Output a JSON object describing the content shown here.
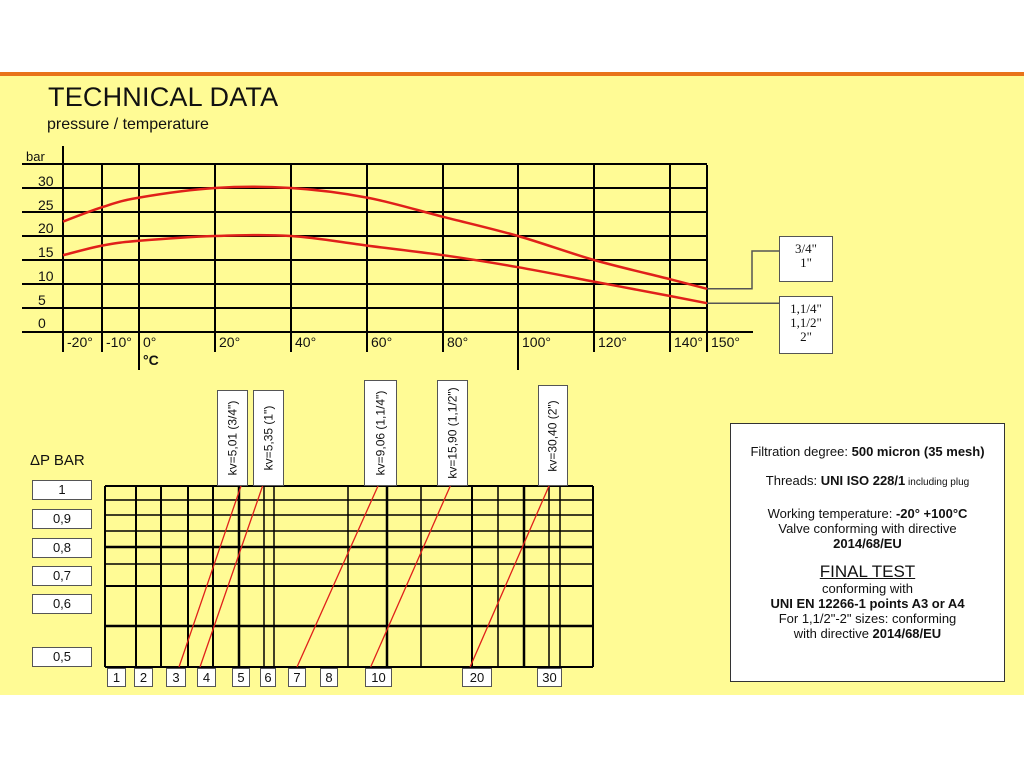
{
  "header": {
    "title": "TECHNICAL DATA",
    "subtitle": "pressure / temperature"
  },
  "colors": {
    "accent_bar": "#e8731a",
    "background": "#fffb95",
    "curve": "#e0201a",
    "grid": "#000000"
  },
  "chart_data": [
    {
      "type": "line",
      "title": "",
      "ylabel": "bar",
      "xlabel": "°C",
      "x_ticks": [
        "-20°",
        "-10°",
        "0°",
        "20°",
        "40°",
        "60°",
        "80°",
        "100°",
        "120°",
        "140°",
        "150°"
      ],
      "y_ticks": [
        "30",
        "25",
        "20",
        "15",
        "10",
        "5",
        "0"
      ],
      "xlim": [
        -20,
        150
      ],
      "ylim": [
        0,
        35
      ],
      "grid": true,
      "series": [
        {
          "name": "3/4\" 1\"",
          "label_lines": [
            "3/4\"",
            "1\""
          ],
          "points": [
            [
              -20,
              23
            ],
            [
              -10,
              26
            ],
            [
              0,
              28
            ],
            [
              20,
              30
            ],
            [
              40,
              30
            ],
            [
              60,
              28
            ],
            [
              80,
              24
            ],
            [
              100,
              20
            ],
            [
              120,
              15
            ],
            [
              140,
              11
            ],
            [
              150,
              9
            ]
          ]
        },
        {
          "name": "1,1/4\" 1,1/2\" 2\"",
          "label_lines": [
            "1,1/4\"",
            "1,1/2\"",
            "2\""
          ],
          "points": [
            [
              -20,
              16
            ],
            [
              -10,
              18
            ],
            [
              0,
              19
            ],
            [
              20,
              20
            ],
            [
              40,
              20
            ],
            [
              60,
              18
            ],
            [
              80,
              16
            ],
            [
              100,
              13.5
            ],
            [
              120,
              10.5
            ],
            [
              140,
              7.5
            ],
            [
              150,
              6
            ]
          ]
        }
      ]
    },
    {
      "type": "line",
      "title": "",
      "ylabel": "ΔP BAR",
      "x_ticks": [
        "1",
        "2",
        "3",
        "4",
        "5",
        "6",
        "7",
        "8",
        "10",
        "20",
        "30"
      ],
      "y_ticks": [
        "1",
        "0,9",
        "0,8",
        "0,7",
        "0,6",
        "0,5"
      ],
      "ylim": [
        0.5,
        1
      ],
      "grid": true,
      "series": [
        {
          "name": "kv=5,01  (3/4\")",
          "points": [
            [
              3.1,
              0.5
            ],
            [
              5.0,
              1
            ]
          ]
        },
        {
          "name": "kv=5,35 (1\")",
          "points": [
            [
              3.8,
              0.5
            ],
            [
              5.8,
              1
            ]
          ]
        },
        {
          "name": "kv=9,06 (1,1/4\")",
          "points": [
            [
              7.0,
              0.5
            ],
            [
              10.0,
              1
            ]
          ]
        },
        {
          "name": "kv=15,90 (1,1/2\")",
          "points": [
            [
              9.7,
              0.5
            ],
            [
              17.3,
              1
            ]
          ]
        },
        {
          "name": "kv=30,40 (2\")",
          "points": [
            [
              19.3,
              0.5
            ],
            [
              30,
              1
            ]
          ]
        }
      ]
    }
  ],
  "info": {
    "filtration_label": "Filtration degree: ",
    "filtration_value": "500 micron (35 mesh)",
    "threads_label": "Threads: ",
    "threads_value": "UNI ISO 228/1",
    "threads_note": " including plug",
    "temp_label": "Working temperature: ",
    "temp_value": "-20° +100°C",
    "valve_text": "Valve conforming with directive",
    "valve_directive": "2014/68/EU",
    "final_test": "FINAL TEST",
    "conforming_with": "conforming with",
    "standard": "UNI EN 12266-1  points A3 or A4",
    "sizes_text": "For 1,1/2\"-2\" sizes: conforming",
    "with_directive": "with directive ",
    "sizes_directive": "2014/68/EU"
  }
}
